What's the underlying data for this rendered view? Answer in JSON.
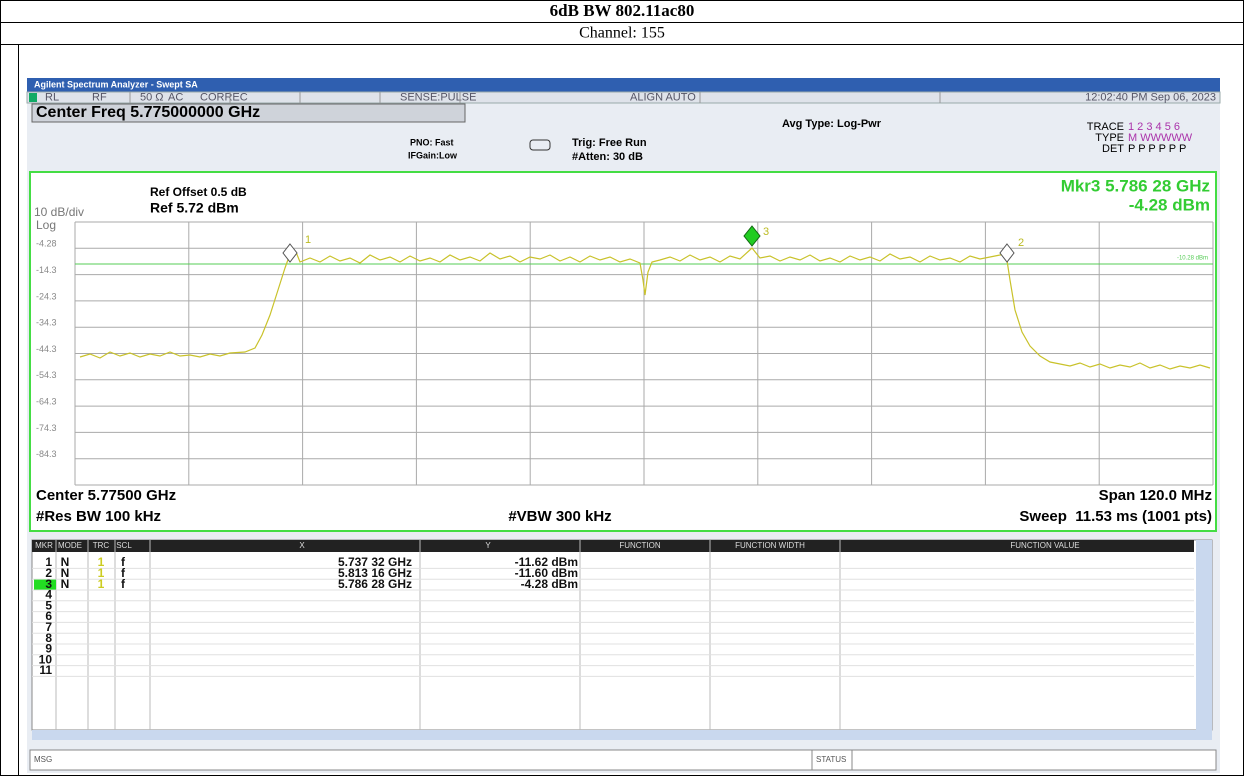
{
  "header": {
    "title": "6dB BW 802.11ac80",
    "subtitle": "Channel: 155"
  },
  "analyzer": {
    "title_bar": "Agilent Spectrum Analyzer - Swept SA",
    "status_bar": [
      "RL",
      "RF",
      "50 Ω",
      "AC",
      "CORREC",
      "SENSE:PULSE",
      "ALIGN AUTO",
      "12:02:40 PM Sep 06, 2023"
    ],
    "center_freq": "Center Freq 5.775000000 GHz",
    "pno": "PNO: Fast",
    "ifgain": "IFGain:Low",
    "trig": "Trig: Free Run",
    "atten": "#Atten: 30 dB",
    "avg_type": "Avg Type: Log-Pwr",
    "trace_panel": {
      "trace_label": "TRACE",
      "trace_values": "1 2 3 4 5 6",
      "type_label": "TYPE",
      "type_values": "M WWWWW",
      "det_label": "DET",
      "det_values": "P P P P P P"
    },
    "ref_offset": "Ref Offset 0.5 dB",
    "ref": "Ref 5.72 dBm",
    "scale": "10 dB/div",
    "scale_type": "Log",
    "marker_readout": {
      "name": "Mkr3 5.786 28 GHz",
      "value": "-4.28 dBm"
    },
    "y_axis_labels": [
      "-4.28",
      "-14.3",
      "-24.3",
      "-34.3",
      "-44.3",
      "-54.3",
      "-64.3",
      "-74.3",
      "-84.3"
    ],
    "display_line_label": "-10.28 dBm",
    "marker_labels": [
      "1",
      "2",
      "3"
    ],
    "center": "Center 5.77500 GHz",
    "res_bw": "#Res BW 100 kHz",
    "vbw": "#VBW 300 kHz",
    "span": "Span 120.0 MHz",
    "sweep": "Sweep  11.53 ms (1001 pts)",
    "table": {
      "headers": [
        "MKR",
        "MODE",
        "TRC",
        "SCL",
        "X",
        "Y",
        "FUNCTION",
        "FUNCTION WIDTH",
        "FUNCTION VALUE"
      ],
      "rows": [
        [
          "1",
          "N",
          "1",
          "f",
          "5.737 32 GHz",
          "-11.62 dBm"
        ],
        [
          "2",
          "N",
          "1",
          "f",
          "5.813 16 GHz",
          "-11.60 dBm"
        ],
        [
          "3",
          "N",
          "1",
          "f",
          "5.786 28 GHz",
          "-4.28 dBm"
        ],
        [
          "4"
        ],
        [
          "5"
        ],
        [
          "6"
        ],
        [
          "7"
        ],
        [
          "8"
        ],
        [
          "9"
        ],
        [
          "10"
        ],
        [
          "11"
        ]
      ]
    },
    "msg": "MSG",
    "status": "STATUS"
  }
}
